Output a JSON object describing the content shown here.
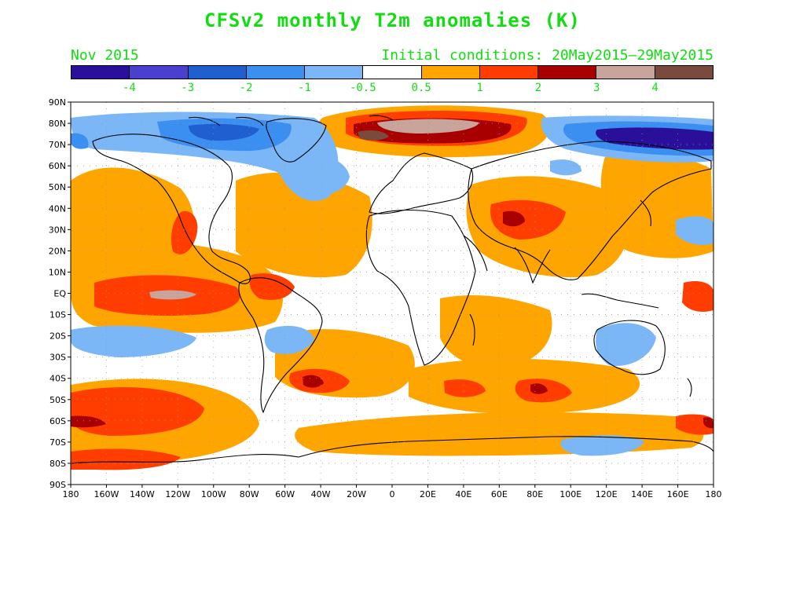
{
  "header": {
    "title": "CFSv2 monthly T2m anomalies (K)",
    "valid_month": "Nov 2015",
    "initial_conditions": "Initial conditions: 20May2015–29May2015"
  },
  "colorbar": {
    "colors": [
      "#2a0f9a",
      "#4b3fcf",
      "#1f5fd0",
      "#3b8ff0",
      "#7bb7f7",
      "#ffffff",
      "#ffa500",
      "#ff3d00",
      "#a80000",
      "#c9a49a",
      "#7a4b3c"
    ],
    "labels": [
      "-4",
      "-3",
      "-2",
      "-1",
      "-0.5",
      "0.5",
      "1",
      "2",
      "3",
      "4"
    ]
  },
  "axes": {
    "y_labels": [
      "90N",
      "80N",
      "70N",
      "60N",
      "50N",
      "40N",
      "30N",
      "20N",
      "10N",
      "EQ",
      "10S",
      "20S",
      "30S",
      "40S",
      "50S",
      "60S",
      "70S",
      "80S",
      "90S"
    ],
    "x_labels": [
      "180",
      "160W",
      "140W",
      "120W",
      "100W",
      "80W",
      "60W",
      "40W",
      "20W",
      "0",
      "20E",
      "40E",
      "60E",
      "80E",
      "100E",
      "120E",
      "140E",
      "160E",
      "180"
    ]
  },
  "map": {
    "anomaly_regions": [
      {
        "name": "arctic-russia-warm",
        "category": "3"
      },
      {
        "name": "eastern-siberia-cold",
        "category": "-3"
      },
      {
        "name": "canada-arctic-cold",
        "category": "-2"
      },
      {
        "name": "enso-pacific-warm",
        "category": "3"
      },
      {
        "name": "indian-ocean-warm",
        "category": "1"
      },
      {
        "name": "south-atlantic-warm",
        "category": "2"
      },
      {
        "name": "southern-ocean-warm",
        "category": "2"
      }
    ]
  }
}
